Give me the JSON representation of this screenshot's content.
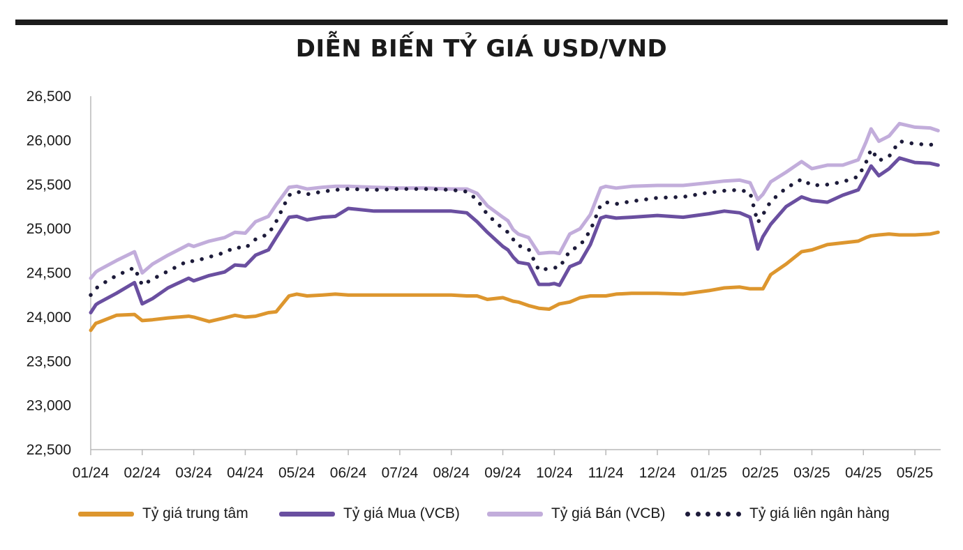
{
  "colors": {
    "central": "#dd962e",
    "buy": "#6a4fa0",
    "sell": "#c2addb",
    "interbank": "#1d1b3a"
  },
  "chart_data": {
    "type": "line",
    "title": "DIỄN BIẾN TỶ GIÁ USD/VND",
    "xlabel": "",
    "ylabel": "",
    "ylim": [
      22500,
      26500
    ],
    "yticks": [
      "22,500",
      "23,000",
      "23,500",
      "24,000",
      "24,500",
      "25,000",
      "25,500",
      "26,000",
      "26,500"
    ],
    "ytick_values": [
      22500,
      23000,
      23500,
      24000,
      24500,
      25000,
      25500,
      26000,
      26500
    ],
    "categories": [
      "01/24",
      "02/24",
      "03/24",
      "04/24",
      "05/24",
      "06/24",
      "07/24",
      "08/24",
      "09/24",
      "10/24",
      "11/24",
      "12/24",
      "01/25",
      "02/25",
      "03/25",
      "04/25",
      "05/25"
    ],
    "x": [
      0,
      0.1,
      0.15,
      0.5,
      0.85,
      1.0,
      1.2,
      1.5,
      1.9,
      2.0,
      2.3,
      2.6,
      2.8,
      3.0,
      3.2,
      3.45,
      3.6,
      3.85,
      4.0,
      4.2,
      4.5,
      4.75,
      5.0,
      5.5,
      6.0,
      6.5,
      7.0,
      7.3,
      7.5,
      7.7,
      8.0,
      8.1,
      8.2,
      8.3,
      8.5,
      8.7,
      8.9,
      9.0,
      9.1,
      9.3,
      9.5,
      9.7,
      9.9,
      10.0,
      10.2,
      10.5,
      11.0,
      11.5,
      12.0,
      12.3,
      12.6,
      12.8,
      12.95,
      13.05,
      13.2,
      13.5,
      13.8,
      14.0,
      14.3,
      14.6,
      14.9,
      15.05,
      15.15,
      15.3,
      15.5,
      15.7,
      16.0,
      16.3,
      16.45
    ],
    "series": [
      {
        "name": "Tỷ giá trung tâm",
        "color_key": "central",
        "style": "solid",
        "values": [
          23850,
          23930,
          23940,
          24020,
          24030,
          23960,
          23970,
          23990,
          24010,
          24000,
          23950,
          23990,
          24020,
          24000,
          24010,
          24050,
          24060,
          24240,
          24260,
          24240,
          24250,
          24260,
          24250,
          24250,
          24250,
          24250,
          24250,
          24240,
          24240,
          24200,
          24220,
          24200,
          24180,
          24170,
          24130,
          24100,
          24090,
          24120,
          24150,
          24170,
          24220,
          24240,
          24240,
          24240,
          24260,
          24270,
          24270,
          24260,
          24300,
          24330,
          24340,
          24320,
          24320,
          24320,
          24480,
          24600,
          24740,
          24760,
          24820,
          24840,
          24860,
          24900,
          24920,
          24930,
          24940,
          24930,
          24930,
          24940,
          24960
        ]
      },
      {
        "name": "Tỷ giá Mua (VCB)",
        "color_key": "buy",
        "style": "solid",
        "values": [
          24050,
          24140,
          24160,
          24270,
          24390,
          24150,
          24210,
          24330,
          24440,
          24410,
          24470,
          24510,
          24590,
          24580,
          24700,
          24760,
          24900,
          25130,
          25140,
          25100,
          25130,
          25140,
          25230,
          25200,
          25200,
          25200,
          25200,
          25180,
          25080,
          24960,
          24800,
          24760,
          24680,
          24620,
          24600,
          24370,
          24370,
          24380,
          24360,
          24570,
          24620,
          24820,
          25120,
          25140,
          25120,
          25130,
          25150,
          25130,
          25170,
          25200,
          25180,
          25130,
          24770,
          24910,
          25050,
          25250,
          25360,
          25320,
          25300,
          25380,
          25440,
          25600,
          25710,
          25600,
          25680,
          25800,
          25750,
          25740,
          25720
        ]
      },
      {
        "name": "Tỷ giá Bán (VCB)",
        "color_key": "sell",
        "style": "solid",
        "values": [
          24440,
          24510,
          24530,
          24640,
          24740,
          24500,
          24600,
          24700,
          24820,
          24800,
          24860,
          24900,
          24960,
          24950,
          25080,
          25140,
          25270,
          25470,
          25480,
          25450,
          25470,
          25480,
          25480,
          25470,
          25460,
          25460,
          25450,
          25450,
          25400,
          25260,
          25130,
          25090,
          24990,
          24940,
          24900,
          24720,
          24730,
          24730,
          24720,
          24940,
          25000,
          25160,
          25460,
          25480,
          25460,
          25480,
          25490,
          25490,
          25520,
          25540,
          25550,
          25520,
          25330,
          25390,
          25530,
          25640,
          25760,
          25680,
          25720,
          25720,
          25780,
          25980,
          26130,
          25990,
          26050,
          26190,
          26150,
          26140,
          26110
        ]
      },
      {
        "name": "Tỷ giá liên ngân hàng",
        "color_key": "interbank",
        "style": "dotted",
        "values": [
          24250,
          24320,
          24350,
          24470,
          24560,
          24360,
          24430,
          24520,
          24640,
          24630,
          24680,
          24730,
          24790,
          24780,
          24880,
          24940,
          25080,
          25380,
          25420,
          25390,
          25420,
          25440,
          25450,
          25440,
          25450,
          25450,
          25440,
          25420,
          25330,
          25160,
          25000,
          24960,
          24880,
          24810,
          24770,
          24530,
          24550,
          24560,
          24560,
          24750,
          24810,
          24980,
          25270,
          25300,
          25280,
          25310,
          25350,
          25360,
          25410,
          25430,
          25440,
          25410,
          25070,
          25160,
          25310,
          25460,
          25560,
          25490,
          25500,
          25530,
          25590,
          25750,
          25900,
          25770,
          25820,
          25990,
          25960,
          25950,
          25960
        ]
      }
    ],
    "grid": false,
    "legend_position": "bottom"
  }
}
